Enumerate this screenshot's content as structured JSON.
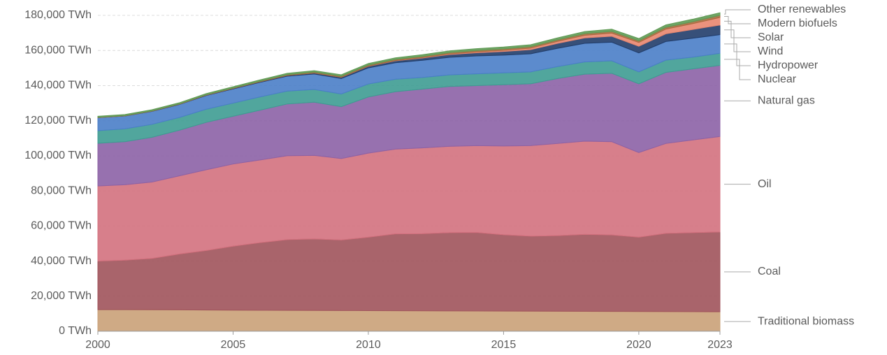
{
  "chart_data": {
    "type": "stacked-area",
    "x": [
      2000,
      2001,
      2002,
      2003,
      2004,
      2005,
      2006,
      2007,
      2008,
      2009,
      2010,
      2011,
      2012,
      2013,
      2014,
      2015,
      2016,
      2017,
      2018,
      2019,
      2020,
      2021,
      2022,
      2023
    ],
    "xlim": [
      2000,
      2023
    ],
    "xticks": [
      2000,
      2005,
      2010,
      2015,
      2020,
      2023
    ],
    "ylim": [
      0,
      180000
    ],
    "yticks": [
      {
        "value": 0,
        "label": "0 TWh"
      },
      {
        "value": 20000,
        "label": "20,000 TWh"
      },
      {
        "value": 40000,
        "label": "40,000 TWh"
      },
      {
        "value": 60000,
        "label": "60,000 TWh"
      },
      {
        "value": 80000,
        "label": "80,000 TWh"
      },
      {
        "value": 100000,
        "label": "100,000 TWh"
      },
      {
        "value": 120000,
        "label": "120,000 TWh"
      },
      {
        "value": 140000,
        "label": "140,000 TWh"
      },
      {
        "value": 160000,
        "label": "160,000 TWh"
      },
      {
        "value": 180000,
        "label": "180,000 TWh"
      }
    ],
    "grid": true,
    "series": [
      {
        "name": "Traditional biomass",
        "color": "#caa178",
        "label_color": "#b8895a",
        "values": [
          12300,
          12300,
          12250,
          12200,
          12100,
          12000,
          11950,
          11900,
          11850,
          11800,
          11750,
          11700,
          11650,
          11600,
          11550,
          11500,
          11450,
          11400,
          11350,
          11300,
          11250,
          11200,
          11150,
          11100
        ]
      },
      {
        "name": "Coal",
        "color": "#a0535b",
        "label_color": "#883039",
        "values": [
          27700,
          28200,
          29250,
          31800,
          33900,
          36500,
          38550,
          40300,
          40750,
          40200,
          41850,
          43800,
          43950,
          44600,
          44750,
          43500,
          42750,
          43100,
          43850,
          43600,
          42350,
          44600,
          45050,
          45500
        ]
      },
      {
        "name": "Oil",
        "color": "#d3717e",
        "label_color": "#d4596b",
        "values": [
          42800,
          43000,
          43500,
          44500,
          46000,
          46800,
          47100,
          47800,
          47600,
          46400,
          47900,
          48300,
          48900,
          49200,
          49500,
          50600,
          51600,
          52500,
          53100,
          53100,
          48200,
          51200,
          52800,
          54400
        ]
      },
      {
        "name": "Natural gas",
        "color": "#8c62a6",
        "label_color": "#6d3e91",
        "values": [
          24300,
          24500,
          25500,
          26000,
          27000,
          27200,
          28400,
          29500,
          30300,
          29600,
          32000,
          32700,
          33500,
          34100,
          34200,
          34900,
          35200,
          37000,
          38200,
          39000,
          39200,
          40500,
          40500,
          40500
        ]
      },
      {
        "name": "Nuclear",
        "color": "#3e9c92",
        "label_color": "#1d8f8a",
        "values": [
          7200,
          7350,
          7400,
          7250,
          7500,
          7500,
          7550,
          7350,
          7300,
          7200,
          7400,
          7100,
          6600,
          6600,
          6700,
          6750,
          6800,
          6850,
          6950,
          7100,
          6800,
          7000,
          6700,
          6900
        ]
      },
      {
        "name": "Hydropower",
        "color": "#4a7ec8",
        "label_color": "#2d6db5",
        "values": [
          7400,
          7300,
          7400,
          7400,
          7800,
          8100,
          8300,
          8500,
          8800,
          8800,
          9200,
          9400,
          9800,
          10000,
          10200,
          10100,
          10300,
          10400,
          10600,
          10600,
          10800,
          10600,
          10800,
          10600
        ]
      },
      {
        "name": "Wind",
        "color": "#213d6a",
        "label_color": "#0b2650",
        "values": [
          80,
          100,
          140,
          170,
          220,
          270,
          340,
          430,
          560,
          710,
          890,
          1100,
          1300,
          1600,
          1800,
          2100,
          2400,
          2800,
          3100,
          3400,
          3800,
          4400,
          5000,
          5500
        ]
      },
      {
        "name": "Solar",
        "color": "#e8866f",
        "label_color": "#e0705a",
        "values": [
          3,
          4,
          5,
          7,
          9,
          12,
          16,
          22,
          35,
          55,
          84,
          170,
          260,
          350,
          500,
          630,
          850,
          1150,
          1500,
          1800,
          2200,
          2700,
          3300,
          4300
        ]
      },
      {
        "name": "Modern biofuels",
        "color": "#a86a3e",
        "label_color": "#a2552c",
        "values": [
          120,
          130,
          150,
          170,
          200,
          250,
          310,
          400,
          500,
          560,
          620,
          640,
          660,
          720,
          770,
          800,
          820,
          860,
          930,
          970,
          900,
          1000,
          1100,
          1200
        ]
      },
      {
        "name": "Other renewables",
        "color": "#5f9a54",
        "label_color": "#4c8a3e",
        "values": [
          600,
          620,
          640,
          660,
          690,
          720,
          750,
          780,
          810,
          840,
          880,
          920,
          960,
          1000,
          1050,
          1090,
          1120,
          1160,
          1200,
          1240,
          1300,
          1380,
          1440,
          1500
        ]
      }
    ]
  }
}
